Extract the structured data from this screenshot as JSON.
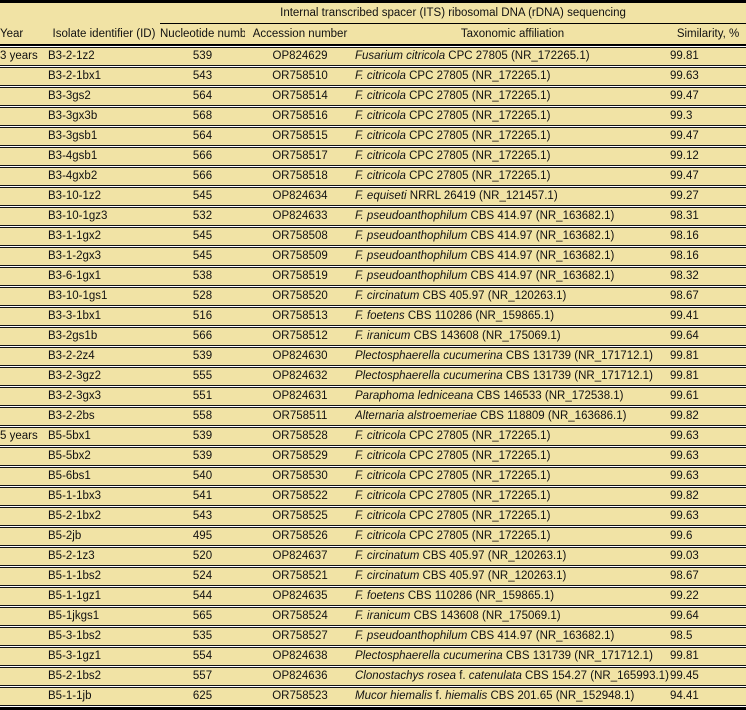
{
  "colors": {
    "row_bg": "#F1E3A5",
    "rule": "#000000",
    "gap": "#FFFFFF",
    "text": "#111111"
  },
  "table": {
    "span_header": "Internal transcribed spacer (ITS) ribosomal DNA (rDNA) sequencing",
    "columns": [
      "Year",
      "Isolate identifier (ID)",
      "Nucleotide number",
      "Accession number",
      "Taxonomic affiliation",
      "Similarity, %"
    ],
    "rows": [
      {
        "year": "3 years",
        "id": "B3-2-1z2",
        "nt": "539",
        "acc": "OP824629",
        "taxon": [
          {
            "t": "Fusarium citricola",
            "i": true
          },
          {
            "t": " CPC 27805 (NR_172265.1)",
            "i": false
          }
        ],
        "sim": "99.81"
      },
      {
        "year": "",
        "id": "B3-2-1bx1",
        "nt": "543",
        "acc": "OR758510",
        "taxon": [
          {
            "t": "F. citricola",
            "i": true
          },
          {
            "t": " CPC 27805 (NR_172265.1)",
            "i": false
          }
        ],
        "sim": "99.63"
      },
      {
        "year": "",
        "id": "B3-3gs2",
        "nt": "564",
        "acc": "OR758514",
        "taxon": [
          {
            "t": "F. citricola",
            "i": true
          },
          {
            "t": " CPC 27805 (NR_172265.1)",
            "i": false
          }
        ],
        "sim": "99.47"
      },
      {
        "year": "",
        "id": "B3-3gx3b",
        "nt": "568",
        "acc": "OR758516",
        "taxon": [
          {
            "t": "F. citricola",
            "i": true
          },
          {
            "t": " CPC 27805 (NR_172265.1)",
            "i": false
          }
        ],
        "sim": "99.3"
      },
      {
        "year": "",
        "id": "B3-3gsb1",
        "nt": "564",
        "acc": "OR758515",
        "taxon": [
          {
            "t": "F. citricola",
            "i": true
          },
          {
            "t": " CPC 27805 (NR_172265.1)",
            "i": false
          }
        ],
        "sim": "99.47"
      },
      {
        "year": "",
        "id": "B3-4gsb1",
        "nt": "566",
        "acc": "OR758517",
        "taxon": [
          {
            "t": "F. citricola",
            "i": true
          },
          {
            "t": " CPC 27805 (NR_172265.1)",
            "i": false
          }
        ],
        "sim": "99.12"
      },
      {
        "year": "",
        "id": "B3-4gxb2",
        "nt": "566",
        "acc": "OR758518",
        "taxon": [
          {
            "t": "F. citricola",
            "i": true
          },
          {
            "t": " CPC 27805 (NR_172265.1)",
            "i": false
          }
        ],
        "sim": "99.47"
      },
      {
        "year": "",
        "id": "B3-10-1z2",
        "nt": "545",
        "acc": "OP824634",
        "taxon": [
          {
            "t": "F. equiseti",
            "i": true
          },
          {
            "t": " NRRL 26419 (NR_121457.1)",
            "i": false
          }
        ],
        "sim": "99.27"
      },
      {
        "year": "",
        "id": "B3-10-1gz3",
        "nt": "532",
        "acc": "OP824633",
        "taxon": [
          {
            "t": "F. pseudoanthophilum",
            "i": true
          },
          {
            "t": " CBS 414.97 (NR_163682.1)",
            "i": false
          }
        ],
        "sim": "98.31"
      },
      {
        "year": "",
        "id": "B3-1-1gx2",
        "nt": "545",
        "acc": "OR758508",
        "taxon": [
          {
            "t": "F. pseudoanthophilum",
            "i": true
          },
          {
            "t": " CBS 414.97 (NR_163682.1)",
            "i": false
          }
        ],
        "sim": "98.16"
      },
      {
        "year": "",
        "id": "B3-1-2gx3",
        "nt": "545",
        "acc": "OR758509",
        "taxon": [
          {
            "t": "F. pseudoanthophilum",
            "i": true
          },
          {
            "t": " CBS 414.97 (NR_163682.1)",
            "i": false
          }
        ],
        "sim": "98.16"
      },
      {
        "year": "",
        "id": "B3-6-1gx1",
        "nt": "538",
        "acc": "OR758519",
        "taxon": [
          {
            "t": "F. pseudoanthophilum",
            "i": true
          },
          {
            "t": " CBS 414.97 (NR_163682.1)",
            "i": false
          }
        ],
        "sim": "98.32"
      },
      {
        "year": "",
        "id": "B3-10-1gs1",
        "nt": "528",
        "acc": "OR758520",
        "taxon": [
          {
            "t": "F. circinatum",
            "i": true
          },
          {
            "t": " CBS 405.97 (NR_120263.1)",
            "i": false
          }
        ],
        "sim": "98.67"
      },
      {
        "year": "",
        "id": "B3-3-1bx1",
        "nt": "516",
        "acc": "OR758513",
        "taxon": [
          {
            "t": "F. foetens",
            "i": true
          },
          {
            "t": " CBS 110286 (NR_159865.1)",
            "i": false
          }
        ],
        "sim": "99.41"
      },
      {
        "year": "",
        "id": "B3-2gs1b",
        "nt": "566",
        "acc": "OR758512",
        "taxon": [
          {
            "t": "F. iranicum",
            "i": true
          },
          {
            "t": " CBS 143608 (NR_175069.1)",
            "i": false
          }
        ],
        "sim": "99.64"
      },
      {
        "year": "",
        "id": "B3-2-2z4",
        "nt": "539",
        "acc": "OP824630",
        "taxon": [
          {
            "t": "Plectosphaerella cucumerina",
            "i": true
          },
          {
            "t": " CBS 131739 (NR_171712.1)",
            "i": false
          }
        ],
        "sim": "99.81"
      },
      {
        "year": "",
        "id": "B3-2-3gz2",
        "nt": "555",
        "acc": "OP824632",
        "taxon": [
          {
            "t": "Plectosphaerella cucumerina",
            "i": true
          },
          {
            "t": " CBS 131739 (NR_171712.1)",
            "i": false
          }
        ],
        "sim": "99.81"
      },
      {
        "year": "",
        "id": "B3-2-3gx3",
        "nt": "551",
        "acc": "OP824631",
        "taxon": [
          {
            "t": "Paraphoma ledniceana",
            "i": true
          },
          {
            "t": " CBS 146533 (NR_172538.1)",
            "i": false
          }
        ],
        "sim": "99.61"
      },
      {
        "year": "",
        "id": "B3-2-2bs",
        "nt": "558",
        "acc": "OR758511",
        "taxon": [
          {
            "t": "Alternaria alstroemeriae",
            "i": true
          },
          {
            "t": " CBS 118809 (NR_163686.1)",
            "i": false
          }
        ],
        "sim": "99.82"
      },
      {
        "year": "5 years",
        "id": "B5-5bx1",
        "nt": "539",
        "acc": "OR758528",
        "taxon": [
          {
            "t": "F. citricola",
            "i": true
          },
          {
            "t": " CPC 27805 (NR_172265.1)",
            "i": false
          }
        ],
        "sim": "99.63"
      },
      {
        "year": "",
        "id": "B5-5bx2",
        "nt": "539",
        "acc": "OR758529",
        "taxon": [
          {
            "t": "F. citricola",
            "i": true
          },
          {
            "t": " CPC 27805 (NR_172265.1)",
            "i": false
          }
        ],
        "sim": "99.63"
      },
      {
        "year": "",
        "id": "B5-6bs1",
        "nt": "540",
        "acc": "OR758530",
        "taxon": [
          {
            "t": "F. citricola",
            "i": true
          },
          {
            "t": " CPC 27805 (NR_172265.1)",
            "i": false
          }
        ],
        "sim": "99.63"
      },
      {
        "year": "",
        "id": "B5-1-1bx3",
        "nt": "541",
        "acc": "OR758522",
        "taxon": [
          {
            "t": "F. citricola",
            "i": true
          },
          {
            "t": " CPC 27805 (NR_172265.1)",
            "i": false
          }
        ],
        "sim": "99.82"
      },
      {
        "year": "",
        "id": "B5-2-1bx2",
        "nt": "543",
        "acc": "OR758525",
        "taxon": [
          {
            "t": "F. citricola",
            "i": true
          },
          {
            "t": " CPC 27805 (NR_172265.1)",
            "i": false
          }
        ],
        "sim": "99.63"
      },
      {
        "year": "",
        "id": "B5-2jb",
        "nt": "495",
        "acc": "OR758526",
        "taxon": [
          {
            "t": "F. citricola",
            "i": true
          },
          {
            "t": " CPC 27805 (NR_172265.1)",
            "i": false
          }
        ],
        "sim": "99.6"
      },
      {
        "year": "",
        "id": "B5-2-1z3",
        "nt": "520",
        "acc": "OP824637",
        "taxon": [
          {
            "t": "F. circinatum",
            "i": true
          },
          {
            "t": " CBS 405.97 (NR_120263.1)",
            "i": false
          }
        ],
        "sim": "99.03"
      },
      {
        "year": "",
        "id": "B5-1-1bs2",
        "nt": "524",
        "acc": "OR758521",
        "taxon": [
          {
            "t": "F. circinatum",
            "i": true
          },
          {
            "t": " CBS 405.97 (NR_120263.1)",
            "i": false
          }
        ],
        "sim": "98.67"
      },
      {
        "year": "",
        "id": "B5-1-1gz1",
        "nt": "544",
        "acc": "OP824635",
        "taxon": [
          {
            "t": "F. foetens",
            "i": true
          },
          {
            "t": " CBS 110286 (NR_159865.1)",
            "i": false
          }
        ],
        "sim": "99.22"
      },
      {
        "year": "",
        "id": "B5-1jkgs1",
        "nt": "565",
        "acc": "OR758524",
        "taxon": [
          {
            "t": "F. iranicum",
            "i": true
          },
          {
            "t": " CBS 143608 (NR_175069.1)",
            "i": false
          }
        ],
        "sim": "99.64"
      },
      {
        "year": "",
        "id": "B5-3-1bs2",
        "nt": "535",
        "acc": "OR758527",
        "taxon": [
          {
            "t": "F. pseudoanthophilum",
            "i": true
          },
          {
            "t": " CBS 414.97 (NR_163682.1)",
            "i": false
          }
        ],
        "sim": "98.5"
      },
      {
        "year": "",
        "id": "B5-3-1gz1",
        "nt": "554",
        "acc": "OP824638",
        "taxon": [
          {
            "t": "Plectosphaerella cucumerina",
            "i": true
          },
          {
            "t": " CBS 131739 (NR_171712.1)",
            "i": false
          }
        ],
        "sim": "99.81"
      },
      {
        "year": "",
        "id": "B5-2-1bs2",
        "nt": "557",
        "acc": "OP824636",
        "taxon": [
          {
            "t": "Clonostachys rosea",
            "i": true
          },
          {
            "t": " f. ",
            "i": false
          },
          {
            "t": "catenulata",
            "i": true
          },
          {
            "t": " CBS 154.27 (NR_165993.1)",
            "i": false
          }
        ],
        "sim": "99.45"
      },
      {
        "year": "",
        "id": "B5-1-1jb",
        "nt": "625",
        "acc": "OR758523",
        "taxon": [
          {
            "t": "Mucor hiemalis",
            "i": true
          },
          {
            "t": " f. ",
            "i": false
          },
          {
            "t": "hiemalis",
            "i": true
          },
          {
            "t": " CBS 201.65 (NR_152948.1)",
            "i": false
          }
        ],
        "sim": "94.41"
      }
    ]
  }
}
